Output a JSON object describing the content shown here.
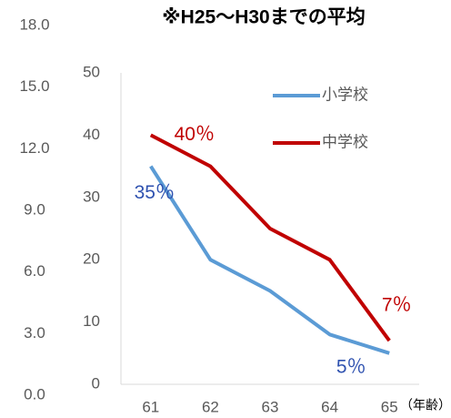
{
  "chart_data": {
    "type": "line",
    "title": "※H25〜H30までの平均",
    "x_label": "（年齢）",
    "categories": [
      "61",
      "62",
      "63",
      "64",
      "65"
    ],
    "ylim": [
      0,
      18
    ],
    "yticks": [
      {
        "value": 0,
        "label": "0.0"
      },
      {
        "value": 3,
        "label": "3.0"
      },
      {
        "value": 6,
        "label": "6.0"
      },
      {
        "value": 9,
        "label": "9.0"
      },
      {
        "value": 12,
        "label": "12.0"
      },
      {
        "value": 15,
        "label": "15.0"
      },
      {
        "value": 18,
        "label": "18.0"
      }
    ],
    "y2lim": [
      0,
      50
    ],
    "y2ticks": [
      0,
      10,
      20,
      30,
      40,
      50
    ],
    "legend": "top-right",
    "series": [
      {
        "name": "小学校",
        "color": "#5b9bd5",
        "axis": "y2",
        "values": [
          35,
          20,
          15,
          8,
          5
        ],
        "value_labels": [
          "35％",
          null,
          null,
          null,
          "5％"
        ],
        "label_color": "#2f52b0"
      },
      {
        "name": "中学校",
        "color": "#c00000",
        "axis": "y2",
        "values": [
          40,
          35,
          25,
          20,
          7
        ],
        "value_labels": [
          "40％",
          null,
          null,
          null,
          "7％"
        ],
        "label_color": "#c00000"
      }
    ]
  }
}
